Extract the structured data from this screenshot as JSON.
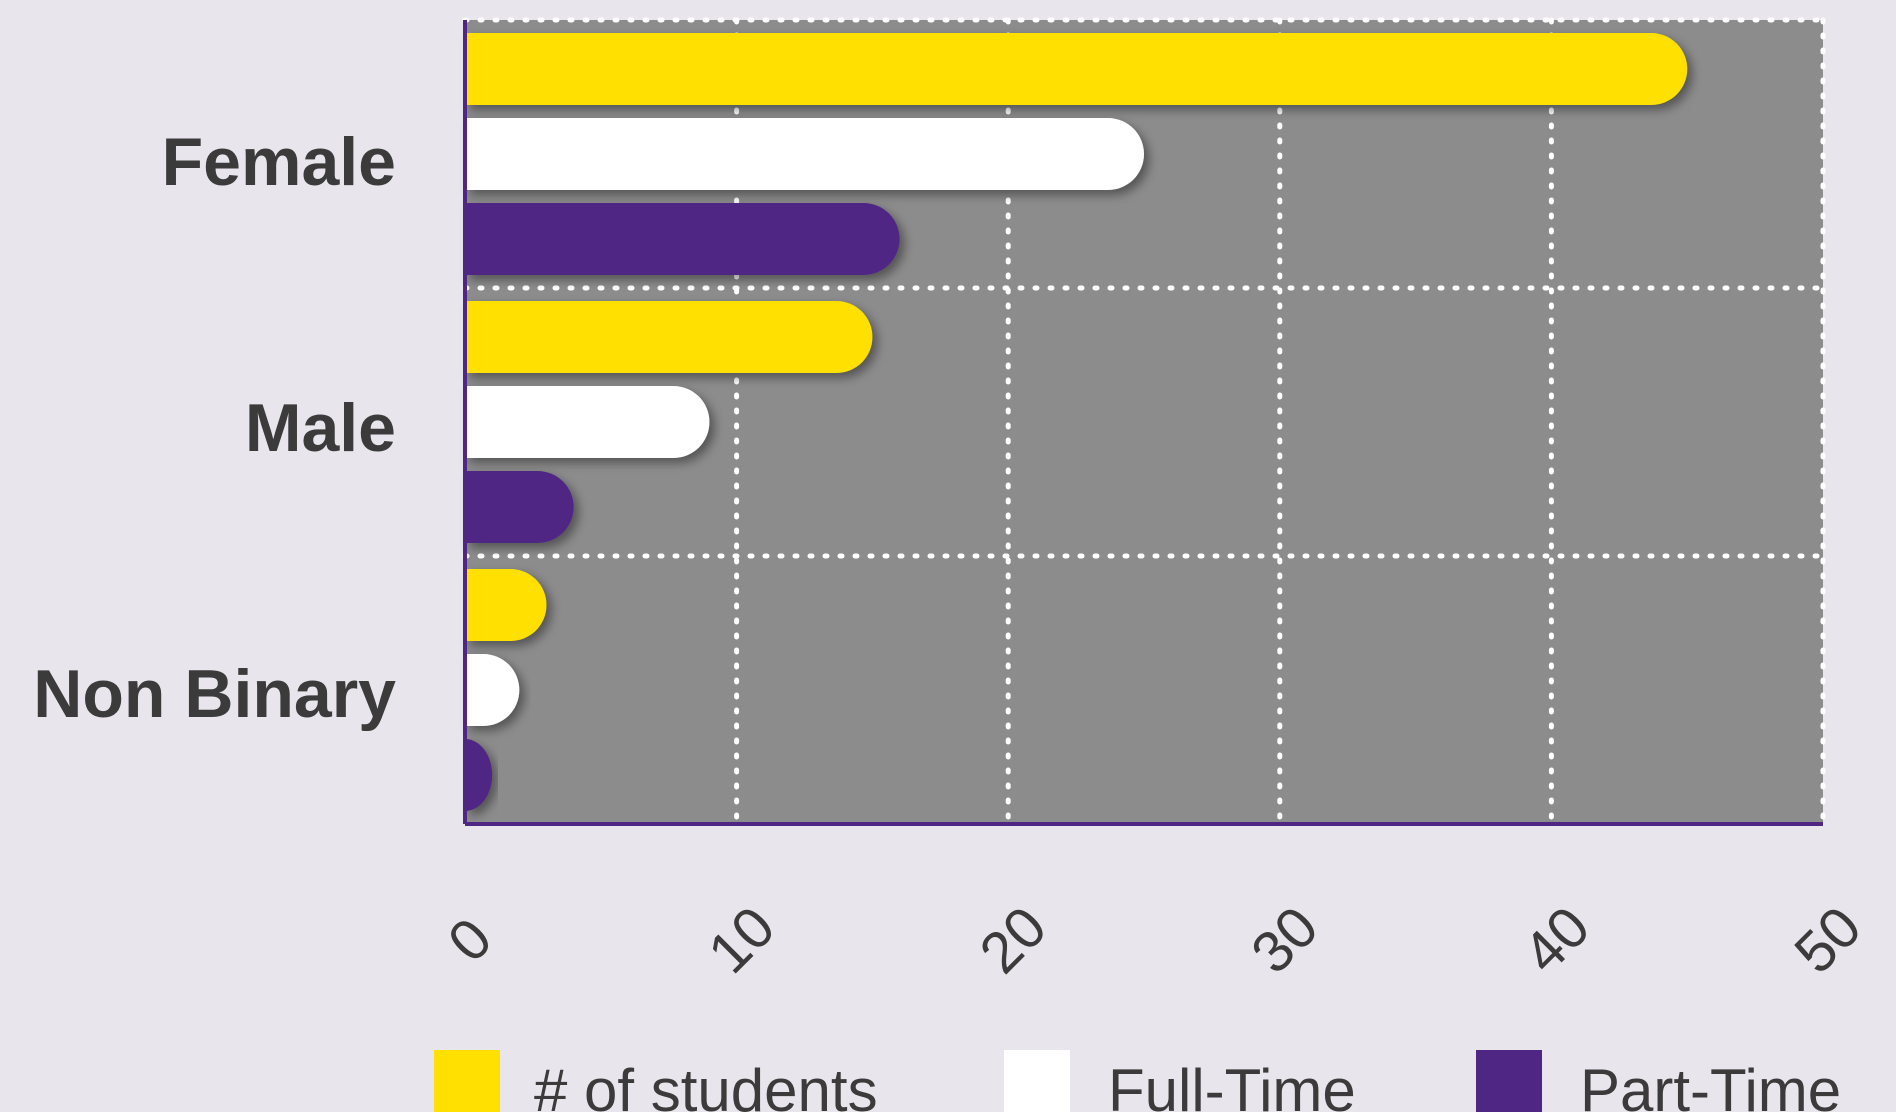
{
  "chart_data": {
    "type": "bar",
    "orientation": "horizontal",
    "categories": [
      "Female",
      "Male",
      "Non Binary"
    ],
    "series": [
      {
        "name": "# of students",
        "color": "#ffe000",
        "values": [
          45,
          15,
          3
        ]
      },
      {
        "name": "Full-Time",
        "color": "#ffffff",
        "values": [
          25,
          9,
          2
        ]
      },
      {
        "name": "Part-Time",
        "color": "#4f2683",
        "values": [
          16,
          4,
          1
        ]
      }
    ],
    "xlim": [
      0,
      50
    ],
    "xticks": [
      "0",
      "10",
      "20",
      "30",
      "40",
      "50"
    ],
    "grid": true,
    "legend_position": "bottom",
    "plot_background": "#8c8c8c",
    "page_background": "#e9e5ec",
    "axis_color": "#4f2683"
  }
}
